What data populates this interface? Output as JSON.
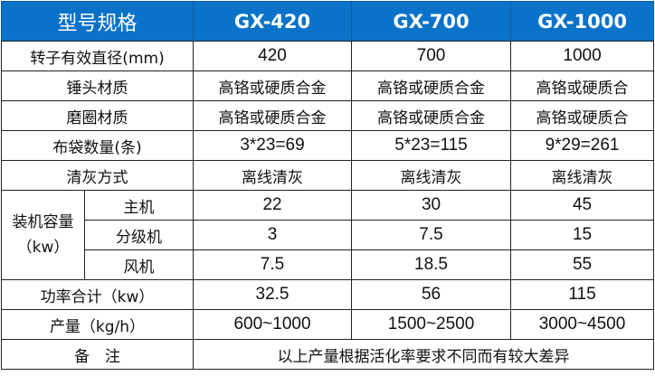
{
  "header": {
    "label": "型号规格",
    "models": [
      "GX-420",
      "GX-700",
      "GX-1000"
    ]
  },
  "rows": [
    {
      "label": "转子有效直径(mm)",
      "values": [
        "420",
        "700",
        "1000"
      ]
    },
    {
      "label": "锤头材质",
      "values": [
        "高铬或硬质合金",
        "高铬或硬质合金",
        "高铬或硬质合"
      ]
    },
    {
      "label": "磨圈材质",
      "values": [
        "高铬或硬质合金",
        "高铬或硬质合金",
        "高铬或硬质合"
      ]
    },
    {
      "label": "布袋数量(条)",
      "values": [
        "3*23=69",
        "5*23=115",
        "9*29=261"
      ]
    },
    {
      "label": "清灰方式",
      "values": [
        "离线清灰",
        "离线清灰",
        "离线清灰"
      ]
    }
  ],
  "capacity": {
    "label": "装机容量（kw）",
    "rows": [
      {
        "label": "主机",
        "values": [
          "22",
          "30",
          "45"
        ]
      },
      {
        "label": "分级机",
        "values": [
          "3",
          "7.5",
          "15"
        ]
      },
      {
        "label": "风机",
        "values": [
          "7.5",
          "18.5",
          "55"
        ]
      }
    ]
  },
  "total": {
    "label": "功率合计（kw）",
    "values": [
      "32.5",
      "56",
      "115"
    ]
  },
  "output": {
    "label": "产量（kg/h）",
    "values": [
      "600~1000",
      "1500~2500",
      "3000~4500"
    ]
  },
  "note": {
    "label": "备　注",
    "text": "以上产量根据活化率要求不同而有较大差异"
  }
}
